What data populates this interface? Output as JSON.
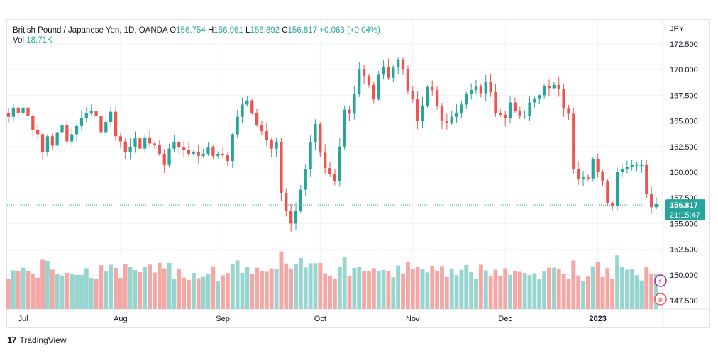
{
  "header": {
    "symbol": "British Pound / Japanese Yen, 1D, OANDA",
    "open_label": "O",
    "open": "156.754",
    "high_label": "H",
    "high": "156.961",
    "low_label": "L",
    "low": "156.392",
    "close_label": "C",
    "close": "156.817",
    "change": "+0.063 (+0.04%)",
    "vol_label": "Vol",
    "vol": "18.71K"
  },
  "footer": {
    "brand": "TradingView",
    "logo_text": "17"
  },
  "colors": {
    "up": "#26a69a",
    "down": "#ef5350",
    "vol_up": "#98d5cf",
    "vol_down": "#f4a8a6",
    "grid": "#f0f3fa",
    "accent": "#2962ff"
  },
  "chart_data": {
    "type": "candlestick",
    "currency_label": "JPY",
    "y_ticks": [
      "172.500",
      "170.000",
      "167.500",
      "165.000",
      "162.500",
      "160.000",
      "157.500",
      "155.000",
      "152.500",
      "150.000",
      "147.500"
    ],
    "y_tick_values": [
      172.5,
      170,
      167.5,
      165,
      162.5,
      160,
      157.5,
      155,
      152.5,
      150,
      147.5
    ],
    "ylim": [
      146.5,
      175.0
    ],
    "x_labels": [
      "Jul",
      "Aug",
      "Sep",
      "Oct",
      "Nov",
      "Dec",
      "2023"
    ],
    "x_label_index": [
      3,
      23,
      44,
      64,
      83,
      102,
      121
    ],
    "last_price": "156.817",
    "countdown": "21:15:47",
    "close": [
      165.4,
      166.3,
      165.8,
      166.3,
      165.5,
      164.1,
      163.7,
      162.0,
      163.5,
      162.6,
      163.9,
      164.6,
      163.0,
      163.7,
      164.5,
      165.3,
      165.8,
      166.0,
      165.5,
      163.9,
      164.9,
      165.9,
      163.5,
      163.0,
      162.0,
      162.5,
      163.3,
      162.3,
      163.4,
      162.8,
      162.7,
      161.8,
      160.7,
      162.3,
      162.9,
      162.4,
      162.2,
      161.8,
      162.0,
      161.6,
      161.8,
      162.4,
      161.6,
      161.8,
      161.7,
      161.1,
      163.7,
      165.4,
      166.6,
      167.0,
      165.8,
      164.6,
      164.0,
      163.1,
      162.3,
      162.9,
      158.0,
      156.2,
      155.0,
      156.2,
      158.3,
      160.3,
      162.9,
      164.7,
      161.9,
      160.4,
      159.8,
      159.1,
      162.5,
      166.1,
      165.7,
      167.6,
      170.0,
      169.4,
      168.5,
      167.1,
      169.5,
      170.3,
      169.2,
      170.2,
      171.0,
      170.0,
      167.9,
      167.1,
      165.0,
      166.5,
      168.3,
      168.0,
      166.5,
      165.0,
      164.8,
      165.4,
      165.8,
      166.6,
      167.6,
      168.0,
      168.4,
      167.7,
      168.8,
      167.8,
      165.8,
      165.6,
      165.3,
      166.8,
      166.0,
      165.5,
      165.5,
      166.8,
      167.2,
      167.5,
      168.4,
      168.2,
      168.5,
      168.1,
      166.2,
      165.7,
      160.3,
      159.3,
      159.5,
      159.4,
      161.3,
      160.0,
      159.1,
      157.0,
      156.7,
      160.0,
      160.3,
      160.5,
      160.7,
      160.7,
      160.7,
      157.9,
      156.6,
      156.9
    ],
    "open": [
      165.8,
      165.4,
      166.3,
      165.8,
      166.3,
      165.5,
      164.1,
      163.7,
      162.0,
      163.5,
      162.6,
      163.9,
      164.6,
      163.0,
      163.7,
      164.5,
      165.3,
      165.8,
      166.0,
      165.5,
      163.9,
      164.9,
      165.9,
      163.5,
      163.0,
      162.0,
      162.5,
      163.3,
      162.3,
      163.4,
      162.8,
      162.7,
      161.8,
      160.7,
      162.3,
      162.9,
      162.4,
      162.2,
      161.8,
      162.0,
      161.6,
      161.8,
      162.4,
      161.6,
      161.8,
      161.7,
      161.1,
      163.7,
      165.4,
      166.6,
      167.0,
      165.8,
      164.6,
      164.0,
      163.1,
      162.3,
      162.9,
      158.0,
      156.2,
      155.0,
      156.2,
      158.3,
      160.3,
      162.9,
      164.7,
      161.9,
      160.4,
      159.8,
      159.1,
      162.5,
      166.1,
      165.7,
      167.6,
      170.0,
      169.4,
      168.5,
      167.1,
      169.5,
      170.3,
      169.2,
      170.2,
      171.0,
      170.0,
      167.9,
      167.1,
      165.0,
      166.5,
      168.3,
      168.0,
      166.5,
      165.0,
      164.8,
      165.4,
      165.8,
      166.6,
      167.6,
      168.0,
      168.4,
      167.7,
      168.8,
      167.8,
      165.8,
      165.6,
      165.3,
      166.8,
      166.0,
      165.5,
      165.5,
      166.8,
      167.2,
      167.5,
      168.4,
      168.2,
      168.5,
      168.1,
      166.2,
      165.7,
      160.3,
      159.3,
      159.5,
      159.4,
      161.3,
      160.0,
      159.1,
      157.0,
      156.7,
      160.0,
      160.3,
      160.5,
      160.7,
      160.7,
      160.7,
      157.9,
      156.6
    ]
  }
}
